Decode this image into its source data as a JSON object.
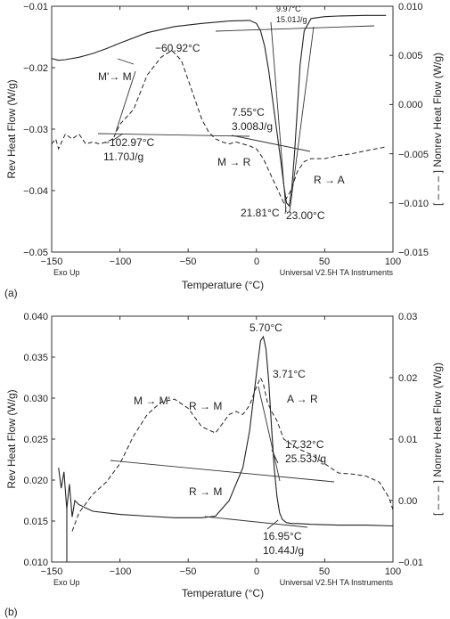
{
  "panels": [
    {
      "tag": "(a)",
      "left_label": "Rev Heat Flow (W/g)",
      "right_label": "[ – – – ] Nonrev Heat Flow (W/g)",
      "xlabel": "Temperature (°C)",
      "exo": "Exo Up",
      "instrument": "Universal V2.5H TA Instruments",
      "x_ticks": [
        "−150",
        "−100",
        "−50",
        "0",
        "50",
        "100"
      ],
      "yl_ticks": [
        "−0.01",
        "−0.02",
        "−0.03",
        "−0.04",
        "−0.05"
      ],
      "yr_ticks": [
        "0.010",
        "0.005",
        "0.000",
        "−0.005",
        "−0.010",
        "−0.015"
      ],
      "annotations": {
        "a1": "9.97°C",
        "a2": "15.01J/g",
        "a3": "−60.92°C",
        "a4": "M'→ M",
        "a5": "7.55°C",
        "a6": "3.008J/g",
        "a7": "−102.97°C",
        "a8": "11.70J/g",
        "a9": "M → R",
        "a10": "R → A",
        "a11": "21.81°C",
        "a12": "23.00°C"
      }
    },
    {
      "tag": "(b)",
      "left_label": "Rev Heat Flow (W/g)",
      "right_label": "[ – – – ] Nonrev Heat Flow (W/g)",
      "xlabel": "Temperature (°C)",
      "exo": "Exo Up",
      "instrument": "Universal V2.5H TA Instruments",
      "x_ticks": [
        "−150",
        "−100",
        "−50",
        "0",
        "50",
        "100"
      ],
      "yl_ticks": [
        "0.040",
        "0.035",
        "0.030",
        "0.025",
        "0.020",
        "0.015",
        "0.010"
      ],
      "yr_ticks": [
        "0.03",
        "0.02",
        "0.01",
        "0.00",
        "−0.01"
      ],
      "annotations": {
        "b1": "5.70°C",
        "b2": "3.71°C",
        "b3": "M → M'",
        "b4": "R → M",
        "b5": "A → R",
        "b6": "17.32°C",
        "b7": "25.53J/g",
        "b8": "R → M",
        "b9": "16.95°C",
        "b10": "10.44J/g"
      }
    }
  ],
  "chart_data": [
    {
      "type": "line",
      "xlim": [
        -150,
        100
      ],
      "ylim_left": [
        -0.05,
        -0.01
      ],
      "ylim_right": [
        -0.015,
        0.01
      ],
      "series": [
        {
          "axis": "left",
          "x": [
            -150,
            -145,
            -140,
            -130,
            -120,
            -110,
            -100,
            -80,
            -60,
            -40,
            -20,
            -5,
            0,
            3,
            6,
            9,
            12,
            15,
            18,
            20,
            22,
            24,
            26,
            28,
            30,
            32,
            35,
            40,
            50,
            60,
            80,
            95
          ],
          "y": [
            -0.0185,
            -0.0188,
            -0.0187,
            -0.0183,
            -0.0177,
            -0.0169,
            -0.016,
            -0.0143,
            -0.0133,
            -0.0128,
            -0.0124,
            -0.0123,
            -0.0128,
            -0.014,
            -0.0165,
            -0.0205,
            -0.0255,
            -0.0305,
            -0.0355,
            -0.039,
            -0.042,
            -0.0425,
            -0.0395,
            -0.0335,
            -0.0265,
            -0.0195,
            -0.014,
            -0.012,
            -0.0117,
            -0.0116,
            -0.0115,
            -0.0115
          ]
        },
        {
          "axis": "right",
          "x": [
            -150,
            -147,
            -145,
            -140,
            -135,
            -130,
            -125,
            -120,
            -115,
            -110,
            -105,
            -100,
            -90,
            -80,
            -70,
            -62,
            -55,
            -50,
            -45,
            -40,
            -35,
            -30,
            -25,
            -20,
            -15,
            -10,
            -5,
            0,
            5,
            10,
            15,
            20,
            25,
            30,
            35,
            40,
            50,
            60,
            70,
            80,
            95
          ],
          "y": [
            -0.004,
            -0.0035,
            -0.0045,
            -0.003,
            -0.0035,
            -0.003,
            -0.004,
            -0.0038,
            -0.004,
            -0.0038,
            -0.0035,
            -0.002,
            -0.0005,
            0.003,
            0.0048,
            0.0055,
            0.0045,
            0.0025,
            0.0005,
            -0.0015,
            -0.0028,
            -0.0035,
            -0.0038,
            -0.004,
            -0.0038,
            -0.004,
            -0.0042,
            -0.0045,
            -0.0055,
            -0.007,
            -0.0085,
            -0.01,
            -0.0088,
            -0.0068,
            -0.0058,
            -0.0055,
            -0.0055,
            -0.0052,
            -0.005,
            -0.0047,
            -0.0043
          ]
        }
      ]
    },
    {
      "type": "line",
      "xlim": [
        -150,
        100
      ],
      "ylim_left": [
        0.01,
        0.04
      ],
      "ylim_right": [
        -0.01,
        0.03
      ],
      "series": [
        {
          "axis": "left",
          "x": [
            -145,
            -143,
            -141,
            -139,
            -137,
            -135,
            -133,
            -130,
            -120,
            -100,
            -80,
            -60,
            -40,
            -30,
            -20,
            -10,
            -5,
            0,
            3,
            5,
            7,
            9,
            11,
            13,
            15,
            17,
            19,
            22,
            26,
            30,
            40,
            60,
            80,
            100
          ],
          "y": [
            0.0215,
            0.019,
            0.021,
            0.0165,
            0.0195,
            0.0155,
            0.0175,
            0.017,
            0.0162,
            0.0158,
            0.0156,
            0.0154,
            0.0154,
            0.0156,
            0.0175,
            0.0215,
            0.026,
            0.033,
            0.037,
            0.0375,
            0.036,
            0.032,
            0.0265,
            0.0215,
            0.018,
            0.016,
            0.0152,
            0.0148,
            0.0147,
            0.0147,
            0.0146,
            0.0145,
            0.0145,
            0.0144
          ]
        },
        {
          "axis": "right",
          "x": [
            -135,
            -130,
            -120,
            -110,
            -100,
            -90,
            -80,
            -70,
            -60,
            -50,
            -40,
            -30,
            -25,
            -20,
            -15,
            -10,
            -5,
            0,
            3,
            5,
            8,
            11,
            15,
            20,
            30,
            40,
            50,
            60,
            70,
            80,
            90,
            97,
            100
          ],
          "y": [
            -0.005,
            -0.002,
            0.001,
            0.003,
            0.006,
            0.0105,
            0.014,
            0.016,
            0.0165,
            0.015,
            0.012,
            0.011,
            0.0125,
            0.014,
            0.0145,
            0.014,
            0.0155,
            0.0185,
            0.02,
            0.019,
            0.016,
            0.0145,
            0.013,
            0.01,
            0.0085,
            0.0075,
            0.006,
            0.0045,
            0.0043,
            0.004,
            0.003,
            0.0005,
            -0.0015
          ]
        }
      ]
    }
  ]
}
